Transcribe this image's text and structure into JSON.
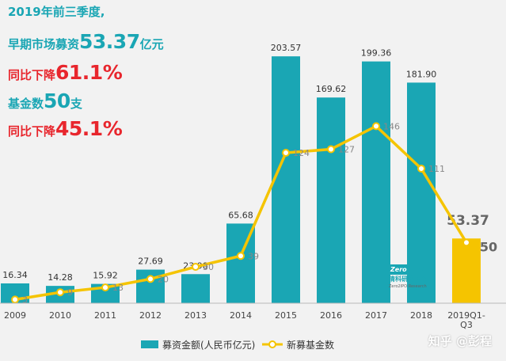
{
  "headlines": {
    "line1": "2019年前三季度,",
    "line2_prefix": "早期市场募资",
    "line2_value": "53.37",
    "line2_suffix": "亿元",
    "line3_prefix": "同比下降",
    "line3_value": "61.1%",
    "line4_prefix": "基金数",
    "line4_value": "50",
    "line4_suffix": "支",
    "line5_prefix": "同比下降",
    "line5_value": "45.1%"
  },
  "logo": {
    "badge_text": "Zero",
    "badge_tag": "IPO",
    "name": "清科研究中心",
    "name_en": "Zero2IPO Research"
  },
  "watermark": "知乎 @彭程",
  "chart_data": {
    "type": "bar",
    "categories": [
      "2009",
      "2010",
      "2011",
      "2012",
      "2013",
      "2014",
      "2015",
      "2016",
      "2017",
      "2018",
      "2019Q1-Q3"
    ],
    "category_labels": [
      [
        "2009"
      ],
      [
        "2010"
      ],
      [
        "2011"
      ],
      [
        "2012"
      ],
      [
        "2013"
      ],
      [
        "2014"
      ],
      [
        "2015"
      ],
      [
        "2016"
      ],
      [
        "2017"
      ],
      [
        "2018"
      ],
      [
        "2019Q1-",
        "Q3"
      ]
    ],
    "series": [
      {
        "name": "募资金额(人民币亿元)",
        "type": "bar",
        "values": [
          16.34,
          14.28,
          15.92,
          27.69,
          23.98,
          65.68,
          203.57,
          169.62,
          199.36,
          181.9,
          53.37
        ],
        "labels": [
          "16.34",
          "14.28",
          "15.92",
          "27.69",
          "23.98",
          "65.68",
          "203.57",
          "169.62",
          "199.36",
          "181.90",
          "53.37"
        ],
        "color": "#1aa6b4",
        "highlight_color": "#f5c400"
      },
      {
        "name": "新募基金数",
        "type": "line",
        "values": [
          3,
          9,
          13,
          20,
          30,
          39,
          124,
          127,
          146,
          111,
          50
        ],
        "labels": [
          "3",
          "9",
          "13",
          "20",
          "30",
          "39",
          "124",
          "127",
          "146",
          "111",
          "50"
        ],
        "color": "#f5c400"
      }
    ],
    "ylim": [
      0,
      220
    ],
    "ylim_line": [
      0,
      220
    ],
    "legend_position": "bottom-center",
    "grid": false
  }
}
